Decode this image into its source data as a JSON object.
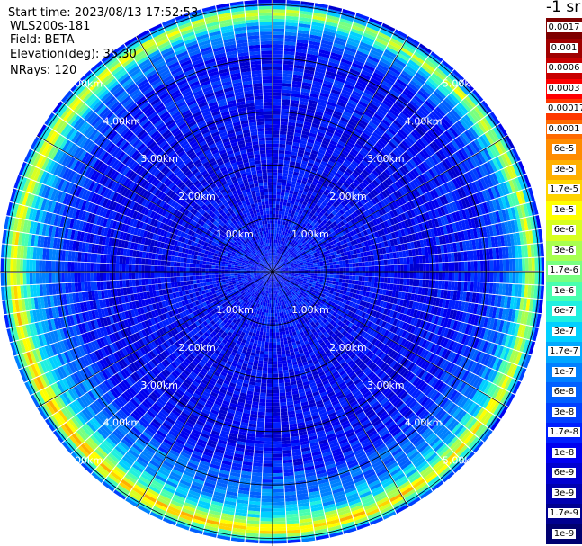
{
  "info": {
    "start_time": "Start time: 2023/08/13 17:52:53",
    "instrument": "WLS200s-181",
    "field": "Field: BETA",
    "elevation": "Elevation(deg): 35.30",
    "nrays": "NRays: 120"
  },
  "units_label": "-1 sr",
  "colorbar": {
    "labels": [
      "0.0017",
      "0.001",
      "0.0006",
      "0.0003",
      "0.00017",
      "0.0001",
      "6e-5",
      "3e-5",
      "1.7e-5",
      "1e-5",
      "6e-6",
      "3e-6",
      "1.7e-6",
      "1e-6",
      "6e-7",
      "3e-7",
      "1.7e-7",
      "1e-7",
      "6e-8",
      "3e-8",
      "1.7e-8",
      "1e-8",
      "6e-9",
      "3e-9",
      "1.7e-9",
      "1e-9"
    ],
    "colors": [
      "#7f0000",
      "#a00000",
      "#c80000",
      "#ff0000",
      "#ff3800",
      "#ff6a00",
      "#ff8c00",
      "#ffb000",
      "#ffd400",
      "#ffff00",
      "#d8ff20",
      "#a8ff50",
      "#78ff80",
      "#48ffb0",
      "#20f0e0",
      "#00d0ff",
      "#00a8ff",
      "#0080ff",
      "#0060ff",
      "#0040ff",
      "#0020ff",
      "#0000f0",
      "#0000d0",
      "#0000b0",
      "#000090",
      "#000070"
    ]
  },
  "chart_data": {
    "type": "heatmap",
    "projection": "polar (PPI scan)",
    "field": "BETA",
    "elevation_deg": 35.3,
    "n_rays": 120,
    "range_rings_km": [
      1,
      2,
      3,
      4,
      5
    ],
    "ring_labels": [
      "1.00km",
      "2.00km",
      "3.00km",
      "4.00km",
      "5.00km"
    ],
    "max_range_km": 5.1,
    "color_scale": "log",
    "value_range": [
      1e-09,
      0.0017
    ],
    "radial_profile": [
      {
        "range_km": 0.0,
        "beta": 2e-08
      },
      {
        "range_km": 1.0,
        "beta": 1.5e-08
      },
      {
        "range_km": 2.0,
        "beta": 1.2e-08
      },
      {
        "range_km": 3.0,
        "beta": 1.2e-08
      },
      {
        "range_km": 3.8,
        "beta": 2e-08
      },
      {
        "range_km": 4.3,
        "beta": 6e-08
      },
      {
        "range_km": 4.6,
        "beta": 3e-07
      },
      {
        "range_km": 4.85,
        "beta": 1e-05
      },
      {
        "range_km": 5.0,
        "beta": 3e-07
      },
      {
        "range_km": 5.1,
        "beta": 1e-08
      }
    ]
  }
}
